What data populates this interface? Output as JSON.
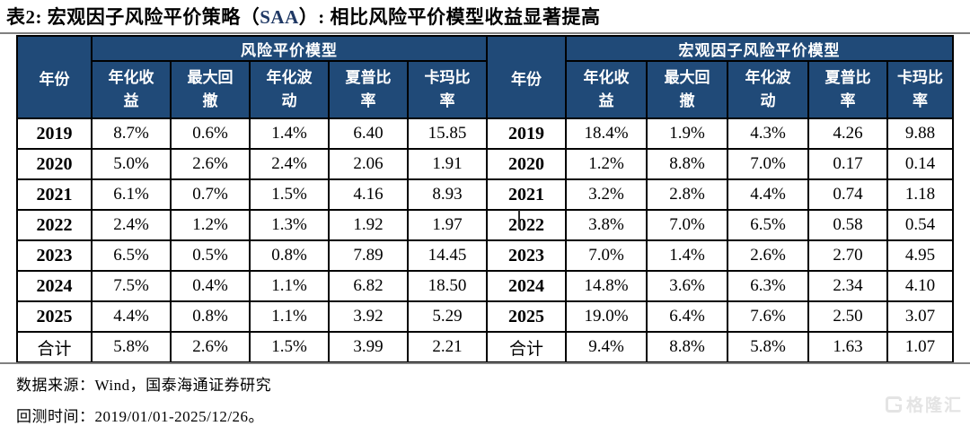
{
  "title": {
    "seg1": "表2:  宏观因子风险平价策略（",
    "highlight": "SAA",
    "seg2": "）:  相比风险平价模型收益显著提高"
  },
  "table": {
    "year_header": "年份",
    "groups": [
      "风险平价模型",
      "宏观因子风险平价模型"
    ],
    "columns": [
      "年化收\n益",
      "最大回\n撤",
      "年化波\n动",
      "夏普比\n率",
      "卡玛比\n率"
    ],
    "rows": [
      {
        "year": "2019",
        "risk_parity": [
          "8.7%",
          "0.6%",
          "1.4%",
          "6.40",
          "15.85"
        ],
        "macro_factor": [
          "18.4%",
          "1.9%",
          "4.3%",
          "4.26",
          "9.88"
        ]
      },
      {
        "year": "2020",
        "risk_parity": [
          "5.0%",
          "2.6%",
          "2.4%",
          "2.06",
          "1.91"
        ],
        "macro_factor": [
          "1.2%",
          "8.8%",
          "7.0%",
          "0.17",
          "0.14"
        ]
      },
      {
        "year": "2021",
        "risk_parity": [
          "6.1%",
          "0.7%",
          "1.5%",
          "4.16",
          "8.93"
        ],
        "macro_factor": [
          "3.2%",
          "2.8%",
          "4.4%",
          "0.74",
          "1.18"
        ]
      },
      {
        "year": "2022",
        "risk_parity": [
          "2.4%",
          "1.2%",
          "1.3%",
          "1.92",
          "1.97"
        ],
        "macro_factor": [
          "3.8%",
          "7.0%",
          "6.5%",
          "0.58",
          "0.54"
        ]
      },
      {
        "year": "2023",
        "risk_parity": [
          "6.5%",
          "0.5%",
          "0.8%",
          "7.89",
          "14.45"
        ],
        "macro_factor": [
          "7.0%",
          "1.4%",
          "2.6%",
          "2.70",
          "4.95"
        ]
      },
      {
        "year": "2024",
        "risk_parity": [
          "7.5%",
          "0.4%",
          "1.1%",
          "6.82",
          "18.50"
        ],
        "macro_factor": [
          "14.8%",
          "3.6%",
          "6.3%",
          "2.34",
          "4.10"
        ]
      },
      {
        "year": "2025",
        "risk_parity": [
          "4.4%",
          "0.8%",
          "1.1%",
          "3.92",
          "5.29"
        ],
        "macro_factor": [
          "19.0%",
          "6.4%",
          "7.6%",
          "2.50",
          "3.07"
        ]
      },
      {
        "year": "合计",
        "risk_parity": [
          "5.8%",
          "2.6%",
          "1.5%",
          "3.99",
          "2.21"
        ],
        "macro_factor": [
          "9.4%",
          "8.8%",
          "5.8%",
          "1.63",
          "1.07"
        ]
      }
    ]
  },
  "footer": {
    "source": "数据来源：Wind，国泰海通证券研究",
    "backtest": "回测时间：2019/01/01-2025/12/26。"
  },
  "watermark": {
    "text": "格隆汇",
    "icon_name": "gelonghui-logo-icon"
  },
  "colors": {
    "header_bg": "#204A78",
    "accent_text": "#1F3864",
    "rule": "#808080"
  }
}
